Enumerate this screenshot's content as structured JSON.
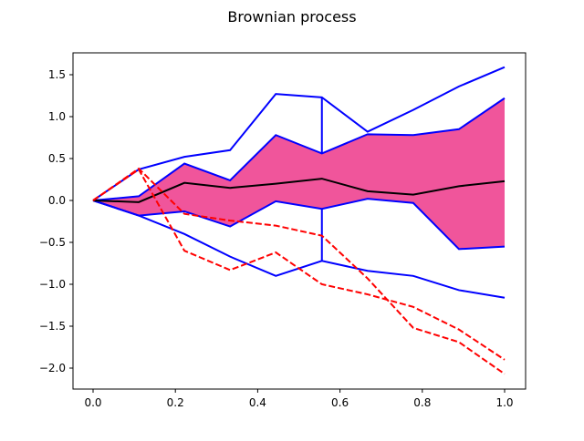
{
  "chart_data": {
    "type": "line",
    "title": "Brownian process",
    "xlabel": "",
    "ylabel": "",
    "xlim": [
      -0.05,
      1.05
    ],
    "ylim": [
      -2.25,
      1.76
    ],
    "xticks": [
      "0.0",
      "0.2",
      "0.4",
      "0.6",
      "0.8",
      "1.0"
    ],
    "xtick_values": [
      0.0,
      0.2,
      0.4,
      0.6,
      0.8,
      1.0
    ],
    "yticks": [
      "−2.0",
      "−1.5",
      "−1.0",
      "−0.5",
      "0.0",
      "0.5",
      "1.0",
      "1.5"
    ],
    "ytick_values": [
      -2.0,
      -1.5,
      -1.0,
      -0.5,
      0.0,
      0.5,
      1.0,
      1.5
    ],
    "grid": false,
    "x": [
      0,
      0.111,
      0.222,
      0.333,
      0.444,
      0.556,
      0.667,
      0.778,
      0.889,
      1.0
    ],
    "band": {
      "color": "#f0559b",
      "upper": [
        0,
        0.05,
        0.44,
        0.24,
        0.78,
        0.56,
        0.79,
        0.78,
        0.85,
        1.22
      ],
      "lower": [
        0,
        -0.18,
        -0.13,
        -0.31,
        -0.01,
        -0.1,
        0.02,
        -0.03,
        -0.58,
        -0.55
      ]
    },
    "series": [
      {
        "style": "solid",
        "color": "#0000ff",
        "values": [
          0,
          0.37,
          0.52,
          0.6,
          1.27,
          1.23,
          0.82,
          1.08,
          1.36,
          1.59
        ]
      },
      {
        "style": "solid",
        "color": "#0000ff",
        "values": [
          0,
          -0.18,
          -0.4,
          -0.67,
          -0.9,
          -0.72,
          -0.84,
          -0.9,
          -1.07,
          -1.16
        ]
      },
      {
        "style": "solid",
        "color": "#000000",
        "values": [
          0,
          -0.02,
          0.21,
          0.15,
          0.2,
          0.26,
          0.11,
          0.07,
          0.17,
          0.23
        ]
      },
      {
        "style": "dashed",
        "color": "#ff0000",
        "values": [
          0,
          0.37,
          -0.6,
          -0.83,
          -0.62,
          -1.0,
          -1.12,
          -1.27,
          -1.54,
          -1.9
        ]
      },
      {
        "style": "dashed",
        "color": "#ff0000",
        "values": [
          0,
          0.38,
          -0.16,
          -0.24,
          -0.3,
          -0.42,
          -0.93,
          -1.52,
          -1.69,
          -2.07
        ]
      }
    ],
    "vertical_segments": [
      {
        "x": 0.556,
        "y": [
          0.56,
          1.23
        ],
        "color": "#0000ff"
      },
      {
        "x": 0.556,
        "y": [
          -0.72,
          -0.1
        ],
        "color": "#0000ff"
      }
    ]
  }
}
